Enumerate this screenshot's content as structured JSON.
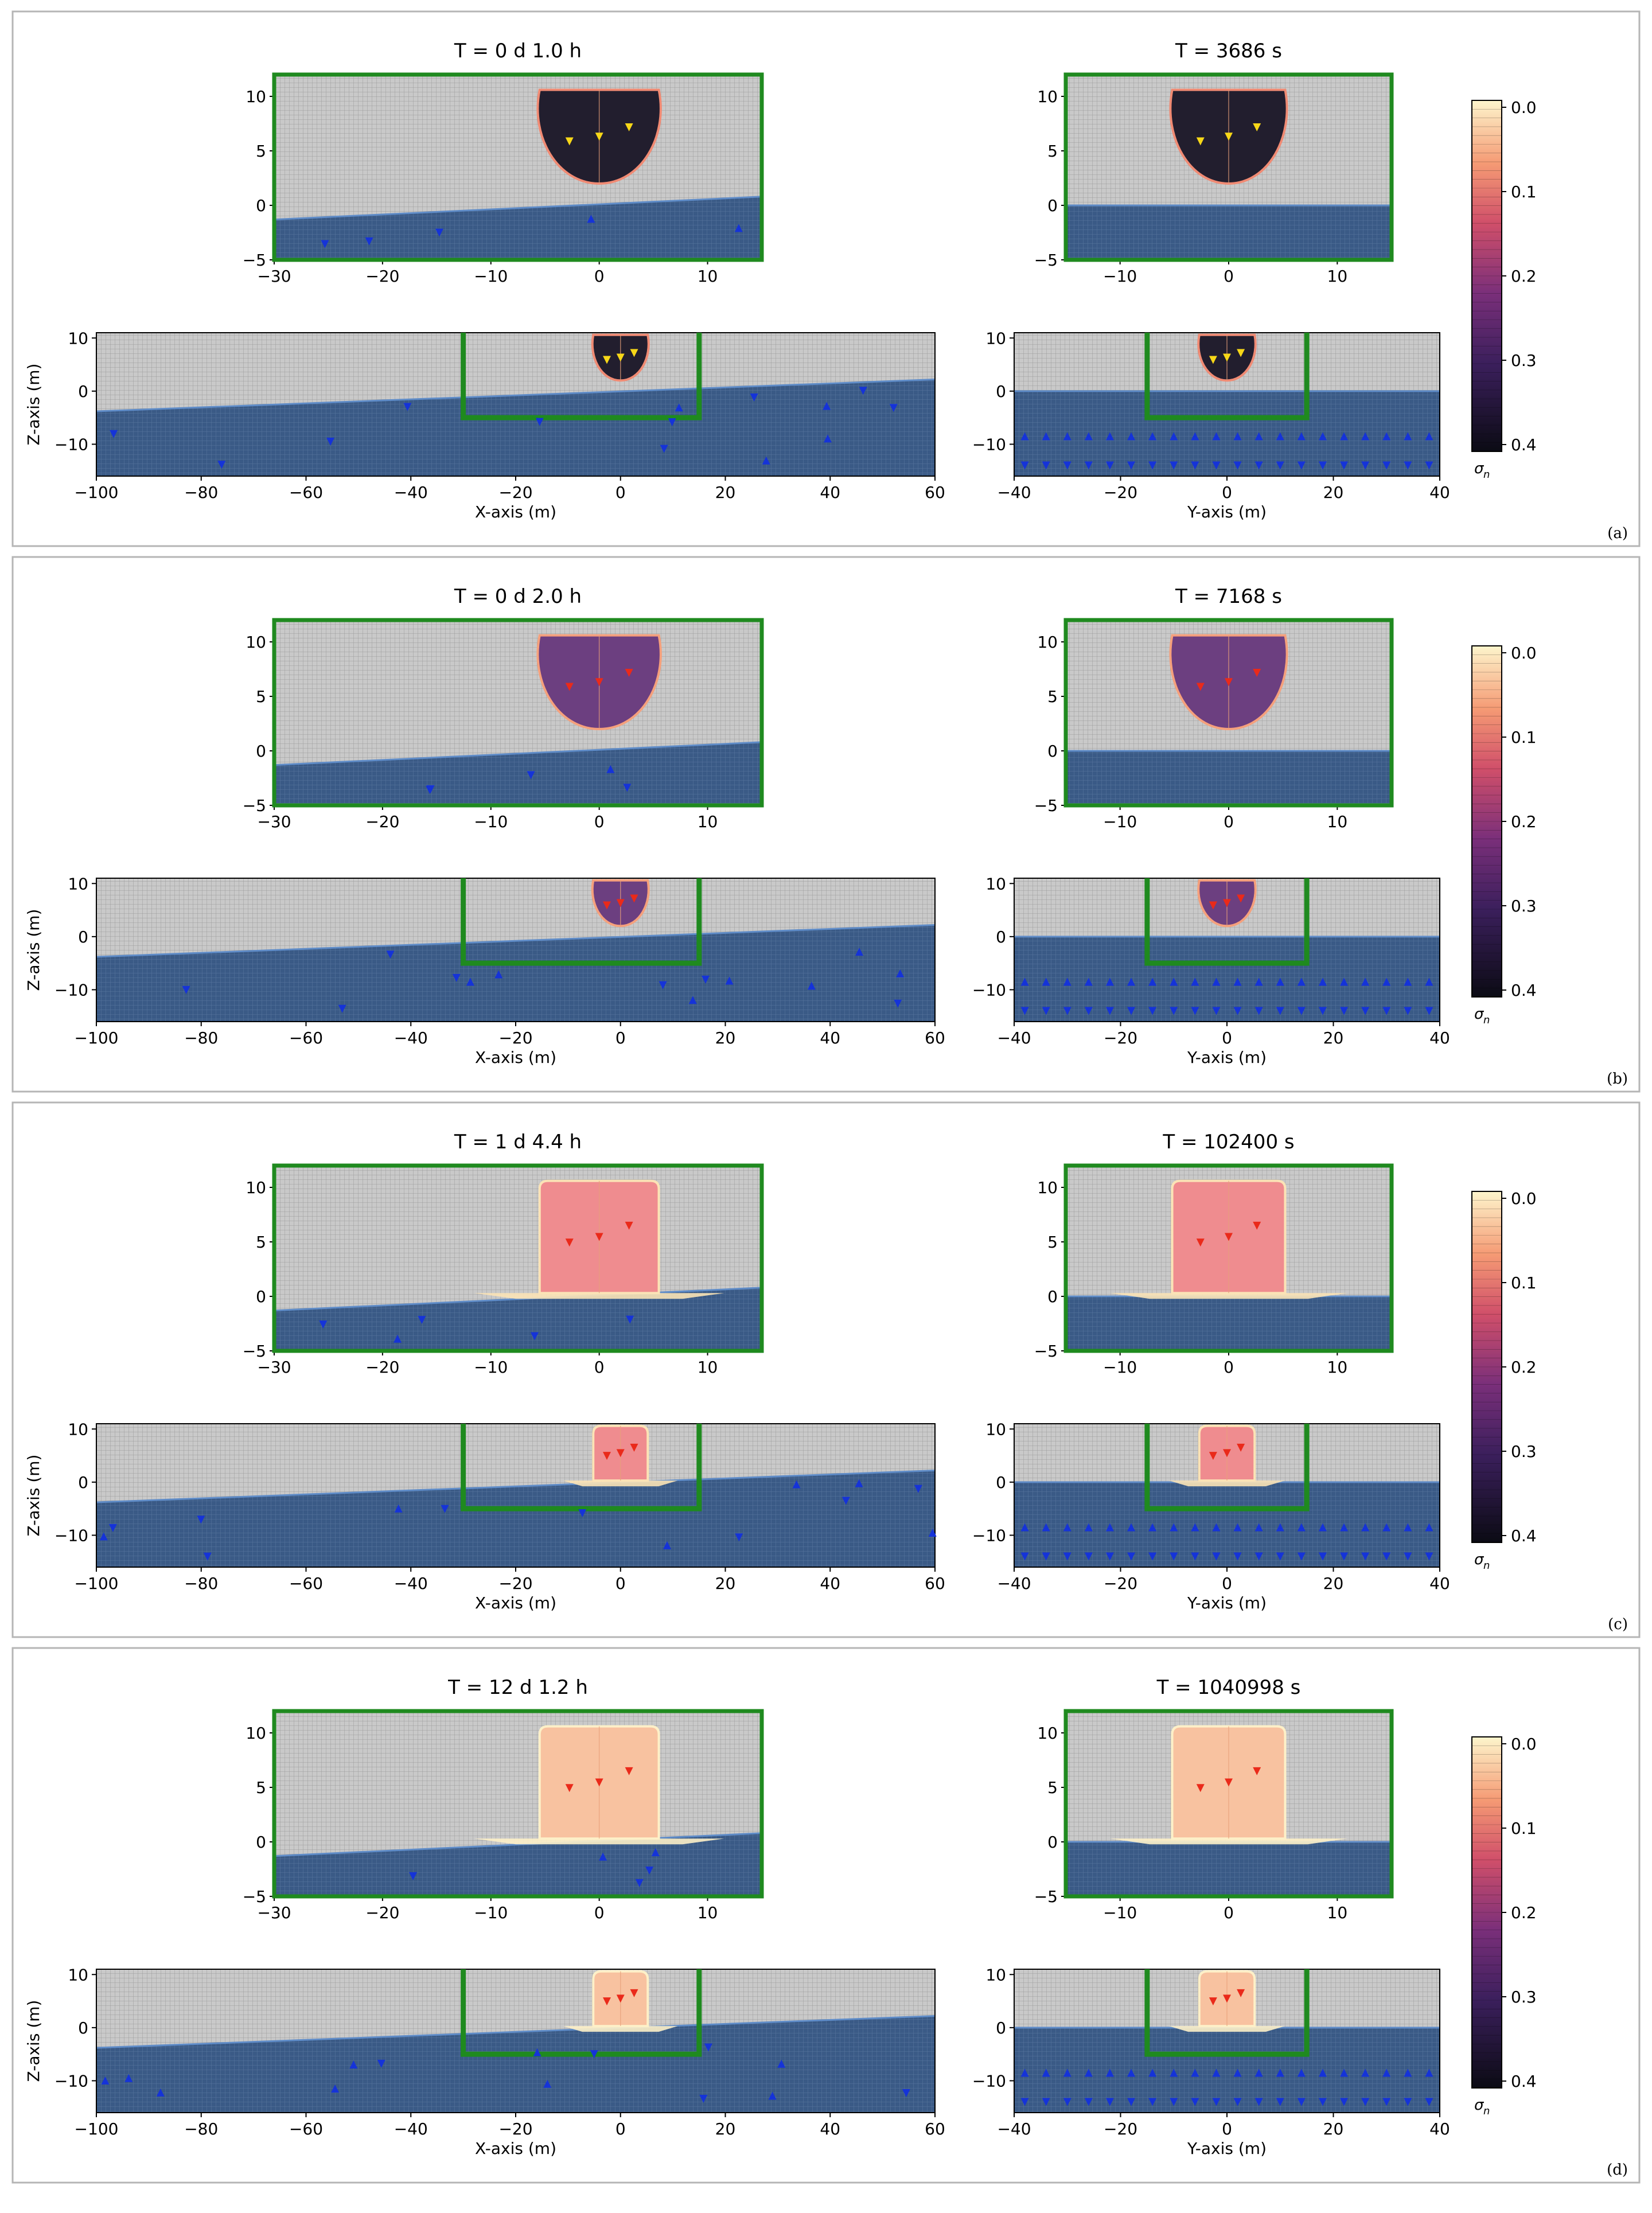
{
  "figure": {
    "panels": [
      {
        "label": "(a)",
        "xz_detail_title": "T = 0 d  1.0 h",
        "yz_detail_title": "T = 3686 s",
        "plume": {
          "stage": "drop",
          "fill": "#221e2e",
          "rim": "#f08a73"
        }
      },
      {
        "label": "(b)",
        "xz_detail_title": "T = 0 d  2.0 h",
        "yz_detail_title": "T = 7168 s",
        "plume": {
          "stage": "drop",
          "fill": "#6c3f80",
          "rim": "#f5a07c"
        }
      },
      {
        "label": "(c)",
        "xz_detail_title": "T = 1 d  4.4 h",
        "yz_detail_title": "T = 102400 s",
        "plume": {
          "stage": "column",
          "fill": "#ef8c8f",
          "rim": "#fbe3b6"
        }
      },
      {
        "label": "(d)",
        "xz_detail_title": "T = 12 d  1.2 h",
        "yz_detail_title": "T = 1040998 s",
        "plume": {
          "stage": "column",
          "fill": "#f8c2a0",
          "rim": "#fdf0c8"
        }
      }
    ],
    "axes": {
      "x_label": "X-axis (m)",
      "y_label": "Y-axis (m)",
      "z_label": "Z-axis (m)"
    },
    "colorbar": {
      "label": "σ",
      "label_subscript": "n",
      "ticks": [
        "0.0",
        "0.1",
        "0.2",
        "0.3",
        "0.4"
      ]
    },
    "colors": {
      "domain_box": "#1f8a1f",
      "background_grid": "#b4b4b4",
      "water": "#3a5a86",
      "water_surface": "#5f8cc8",
      "markers_blue": "#1533d8",
      "markers_yellow": "#f7d718",
      "markers_red": "#ea2a1a"
    }
  },
  "chart_data": [
    {
      "panel": "(a)",
      "type": "heatmap",
      "variable": "σn",
      "color_range": [
        0.0,
        0.4
      ],
      "subplots": [
        {
          "title": "T = 0 d  1.0 h",
          "view": "X-Z detail",
          "xlim": [
            -30,
            15
          ],
          "ylim": [
            -5,
            12
          ],
          "xticks": [
            -30,
            -20,
            -10,
            0,
            10
          ],
          "yticks": [
            -5,
            0,
            5,
            10
          ]
        },
        {
          "title": "T = 3686 s",
          "view": "Y-Z detail",
          "xlim": [
            -15,
            15
          ],
          "ylim": [
            -5,
            12
          ],
          "xticks": [
            -10,
            0,
            10
          ],
          "yticks": [
            -5,
            0,
            5,
            10
          ]
        },
        {
          "title": "",
          "view": "X-Z overview",
          "xlabel": "X-axis (m)",
          "ylabel": "Z-axis (m)",
          "xlim": [
            -100,
            60
          ],
          "ylim": [
            -16,
            11
          ],
          "xticks": [
            -100,
            -80,
            -60,
            -40,
            -20,
            0,
            20,
            40,
            60
          ],
          "yticks": [
            -10,
            0,
            10
          ]
        },
        {
          "title": "",
          "view": "Y-Z overview",
          "xlabel": "Y-axis (m)",
          "xlim": [
            -40,
            40
          ],
          "ylim": [
            -16,
            11
          ],
          "xticks": [
            -40,
            -20,
            0,
            20,
            40
          ],
          "yticks": [
            -10,
            0,
            10
          ]
        }
      ]
    },
    {
      "panel": "(b)",
      "type": "heatmap",
      "variable": "σn",
      "color_range": [
        0.0,
        0.4
      ],
      "subplots": [
        {
          "title": "T = 0 d  2.0 h",
          "view": "X-Z detail",
          "xlim": [
            -30,
            15
          ],
          "ylim": [
            -5,
            12
          ]
        },
        {
          "title": "T = 7168 s",
          "view": "Y-Z detail",
          "xlim": [
            -15,
            15
          ],
          "ylim": [
            -5,
            12
          ]
        },
        {
          "title": "",
          "view": "X-Z overview",
          "xlim": [
            -100,
            60
          ],
          "ylim": [
            -16,
            11
          ]
        },
        {
          "title": "",
          "view": "Y-Z overview",
          "xlim": [
            -40,
            40
          ],
          "ylim": [
            -16,
            11
          ]
        }
      ]
    },
    {
      "panel": "(c)",
      "type": "heatmap",
      "variable": "σn",
      "color_range": [
        0.0,
        0.4
      ],
      "subplots": [
        {
          "title": "T = 1 d  4.4 h",
          "view": "X-Z detail",
          "xlim": [
            -30,
            15
          ],
          "ylim": [
            -5,
            12
          ]
        },
        {
          "title": "T = 102400 s",
          "view": "Y-Z detail",
          "xlim": [
            -15,
            15
          ],
          "ylim": [
            -5,
            12
          ]
        },
        {
          "title": "",
          "view": "X-Z overview",
          "xlim": [
            -100,
            60
          ],
          "ylim": [
            -16,
            11
          ]
        },
        {
          "title": "",
          "view": "Y-Z overview",
          "xlim": [
            -40,
            40
          ],
          "ylim": [
            -16,
            11
          ]
        }
      ]
    },
    {
      "panel": "(d)",
      "type": "heatmap",
      "variable": "σn",
      "color_range": [
        0.0,
        0.4
      ],
      "subplots": [
        {
          "title": "T = 12 d  1.2 h",
          "view": "X-Z detail",
          "xlim": [
            -30,
            15
          ],
          "ylim": [
            -5,
            12
          ]
        },
        {
          "title": "T = 1040998 s",
          "view": "Y-Z detail",
          "xlim": [
            -15,
            15
          ],
          "ylim": [
            -5,
            12
          ]
        },
        {
          "title": "",
          "view": "X-Z overview",
          "xlim": [
            -100,
            60
          ],
          "ylim": [
            -16,
            11
          ]
        },
        {
          "title": "",
          "view": "Y-Z overview",
          "xlim": [
            -40,
            40
          ],
          "ylim": [
            -16,
            11
          ]
        }
      ]
    }
  ]
}
